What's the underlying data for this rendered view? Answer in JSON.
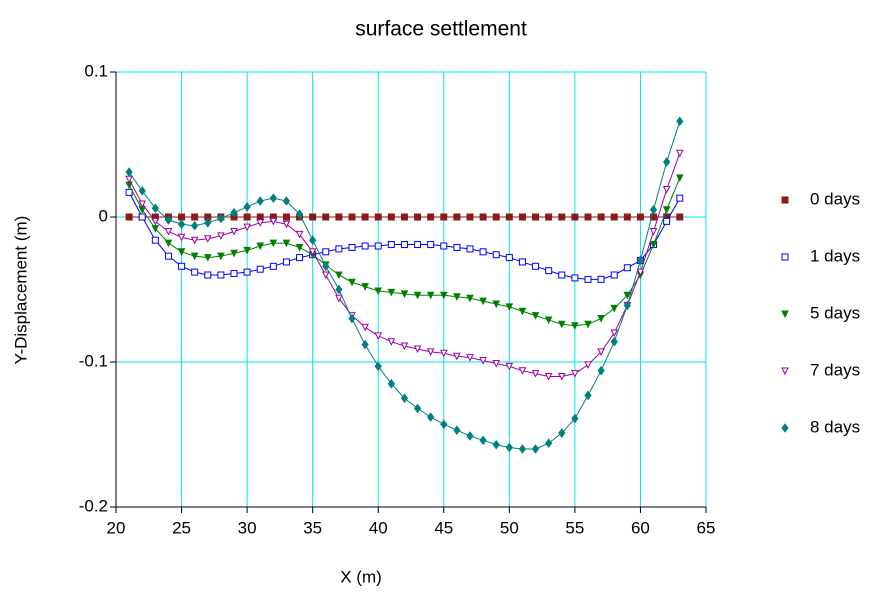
{
  "chart_data": {
    "type": "line",
    "title": "surface settlement",
    "x_label": "X (m)",
    "y_label": "Y-Displacement (m)",
    "xlim": [
      20,
      65
    ],
    "xticks": [
      20,
      25,
      30,
      35,
      40,
      45,
      50,
      55,
      60,
      65
    ],
    "ylim": [
      -0.2,
      0.1
    ],
    "yticks": [
      0.1,
      0,
      -0.1,
      -0.2
    ],
    "grid": true,
    "grid_color": "#00e5ee",
    "legend": "right",
    "x": [
      21,
      22,
      23,
      24,
      25,
      26,
      27,
      28,
      29,
      30,
      31,
      32,
      33,
      34,
      35,
      36,
      37,
      38,
      39,
      40,
      41,
      42,
      43,
      44,
      45,
      46,
      47,
      48,
      49,
      50,
      51,
      52,
      53,
      54,
      55,
      56,
      57,
      58,
      59,
      60,
      61,
      62,
      63
    ],
    "series": [
      {
        "name": "0 days",
        "color": "#8b1a1a",
        "marker": "square",
        "filled": true,
        "values": [
          0,
          0,
          0,
          0,
          0,
          0,
          0,
          0,
          0,
          0,
          0,
          0,
          0,
          0,
          0,
          0,
          0,
          0,
          0,
          0,
          0,
          0,
          0,
          0,
          0,
          0,
          0,
          0,
          0,
          0,
          0,
          0,
          0,
          0,
          0,
          0,
          0,
          0,
          0,
          0,
          0,
          0,
          0
        ]
      },
      {
        "name": "1 days",
        "color": "#0000ff",
        "marker": "square",
        "filled": false,
        "values": [
          0.017,
          0,
          -0.016,
          -0.027,
          -0.034,
          -0.038,
          -0.04,
          -0.04,
          -0.039,
          -0.038,
          -0.036,
          -0.034,
          -0.031,
          -0.028,
          -0.026,
          -0.024,
          -0.022,
          -0.021,
          -0.02,
          -0.02,
          -0.019,
          -0.019,
          -0.019,
          -0.019,
          -0.02,
          -0.021,
          -0.022,
          -0.024,
          -0.026,
          -0.028,
          -0.031,
          -0.034,
          -0.037,
          -0.04,
          -0.042,
          -0.043,
          -0.043,
          -0.04,
          -0.035,
          -0.03,
          -0.019,
          -0.003,
          0.013
        ]
      },
      {
        "name": "5 days",
        "color": "#008000",
        "marker": "triangle-down",
        "filled": true,
        "values": [
          0.022,
          0.005,
          -0.008,
          -0.018,
          -0.024,
          -0.027,
          -0.028,
          -0.027,
          -0.025,
          -0.023,
          -0.02,
          -0.018,
          -0.018,
          -0.021,
          -0.026,
          -0.033,
          -0.04,
          -0.045,
          -0.048,
          -0.051,
          -0.052,
          -0.053,
          -0.054,
          -0.054,
          -0.054,
          -0.055,
          -0.056,
          -0.058,
          -0.06,
          -0.062,
          -0.065,
          -0.068,
          -0.071,
          -0.074,
          -0.075,
          -0.074,
          -0.07,
          -0.063,
          -0.054,
          -0.04,
          -0.019,
          0.005,
          0.027
        ]
      },
      {
        "name": "7 days",
        "color": "#a000a0",
        "marker": "triangle-down",
        "filled": false,
        "values": [
          0.026,
          0.009,
          -0.003,
          -0.01,
          -0.014,
          -0.016,
          -0.015,
          -0.013,
          -0.01,
          -0.007,
          -0.004,
          -0.003,
          -0.005,
          -0.012,
          -0.024,
          -0.04,
          -0.056,
          -0.068,
          -0.076,
          -0.082,
          -0.086,
          -0.089,
          -0.091,
          -0.093,
          -0.094,
          -0.096,
          -0.097,
          -0.099,
          -0.101,
          -0.103,
          -0.106,
          -0.108,
          -0.11,
          -0.11,
          -0.108,
          -0.102,
          -0.093,
          -0.08,
          -0.061,
          -0.038,
          -0.01,
          0.019,
          0.044
        ]
      },
      {
        "name": "8 days",
        "color": "#008080",
        "marker": "diamond",
        "filled": true,
        "values": [
          0.031,
          0.018,
          0.006,
          -0.002,
          -0.005,
          -0.006,
          -0.004,
          -0.001,
          0.003,
          0.007,
          0.011,
          0.013,
          0.011,
          0.002,
          -0.016,
          -0.034,
          -0.05,
          -0.07,
          -0.088,
          -0.103,
          -0.115,
          -0.125,
          -0.132,
          -0.138,
          -0.143,
          -0.147,
          -0.151,
          -0.154,
          -0.157,
          -0.159,
          -0.16,
          -0.16,
          -0.156,
          -0.149,
          -0.139,
          -0.123,
          -0.106,
          -0.086,
          -0.061,
          -0.03,
          0.005,
          0.038,
          0.066
        ]
      }
    ]
  }
}
